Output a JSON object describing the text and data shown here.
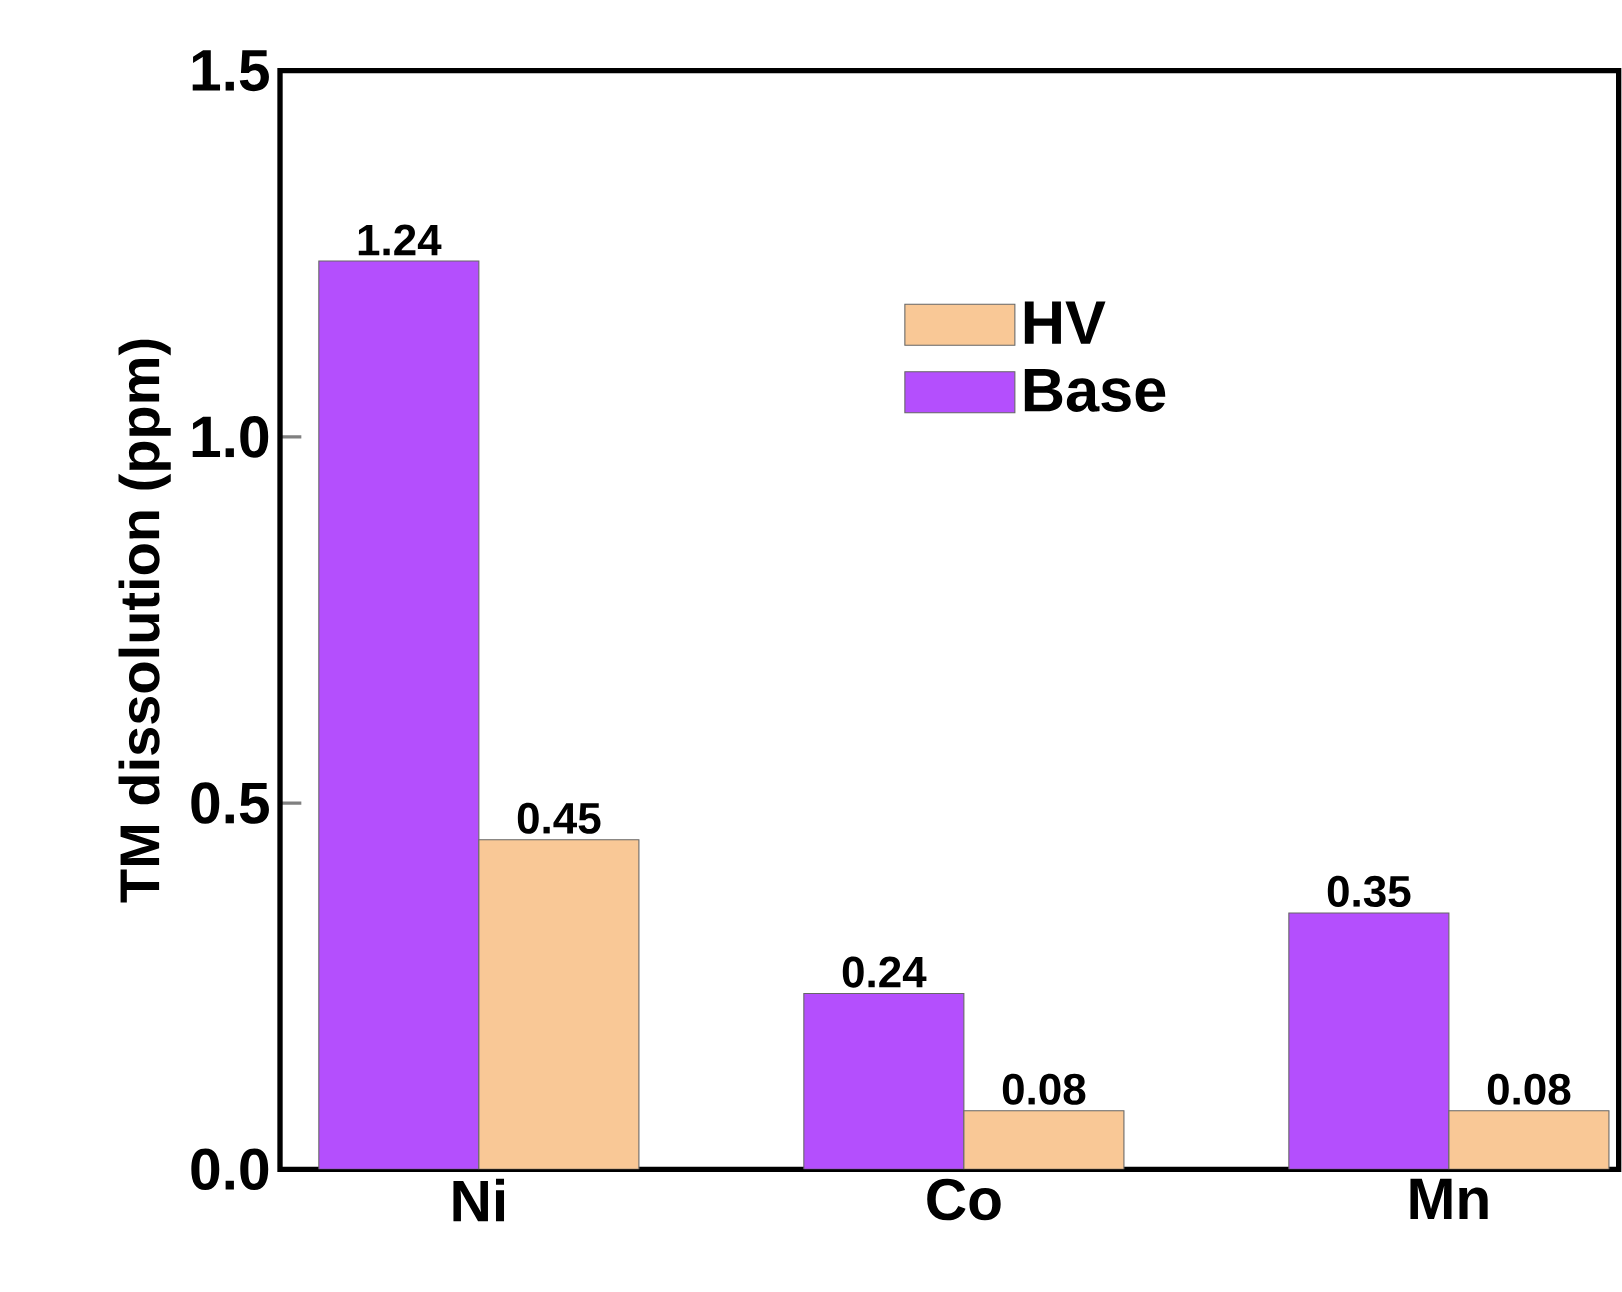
{
  "chart_data": {
    "type": "bar",
    "ylabel": "TM dissolution (ppm)",
    "categories": [
      "Ni",
      "Co",
      "Mn"
    ],
    "series": [
      {
        "name": "Base",
        "color": "#b44ffd",
        "values": [
          1.24,
          0.24,
          0.35
        ]
      },
      {
        "name": "HV",
        "color": "#f9c896",
        "values": [
          0.45,
          0.08,
          0.08
        ]
      }
    ],
    "ylim": [
      0,
      1.5
    ],
    "yticks": [
      {
        "value": 0,
        "label": "0.0"
      },
      {
        "value": 0.5,
        "label": "0.5"
      },
      {
        "value": 1.0,
        "label": "1.0"
      },
      {
        "value": 1.5,
        "label": "1.5"
      }
    ],
    "data_labels": true,
    "legend": "top",
    "grid": false
  }
}
